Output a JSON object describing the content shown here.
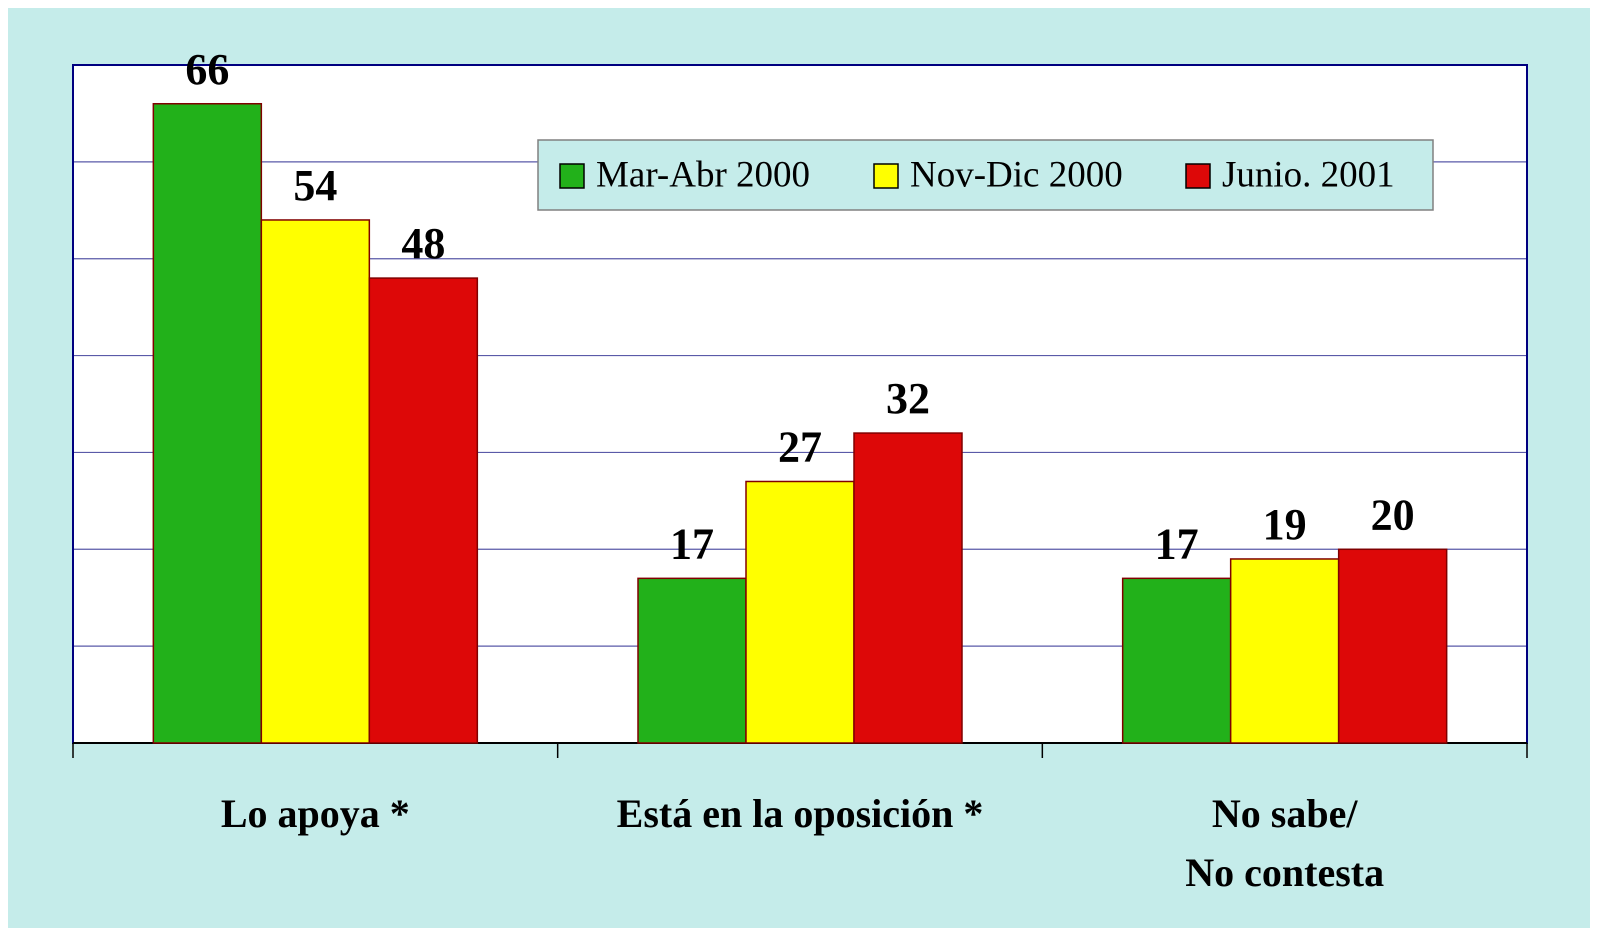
{
  "chart_data": {
    "type": "bar",
    "categories": [
      "Lo apoya *",
      "Está en la oposición *",
      "No sabe/\nNo contesta"
    ],
    "series": [
      {
        "name": "Mar-Abr 2000",
        "color": "#22b11a",
        "values": [
          66,
          17,
          17
        ]
      },
      {
        "name": "Nov-Dic 2000",
        "color": "#ffff00",
        "values": [
          54,
          27,
          19
        ]
      },
      {
        "name": "Junio. 2001",
        "color": "#dd0808",
        "values": [
          48,
          32,
          20
        ]
      }
    ],
    "ylim": [
      0,
      70
    ],
    "yticks": [
      0,
      10,
      20,
      30,
      40,
      50,
      60,
      70
    ],
    "grid": true,
    "legend": "top-right"
  }
}
